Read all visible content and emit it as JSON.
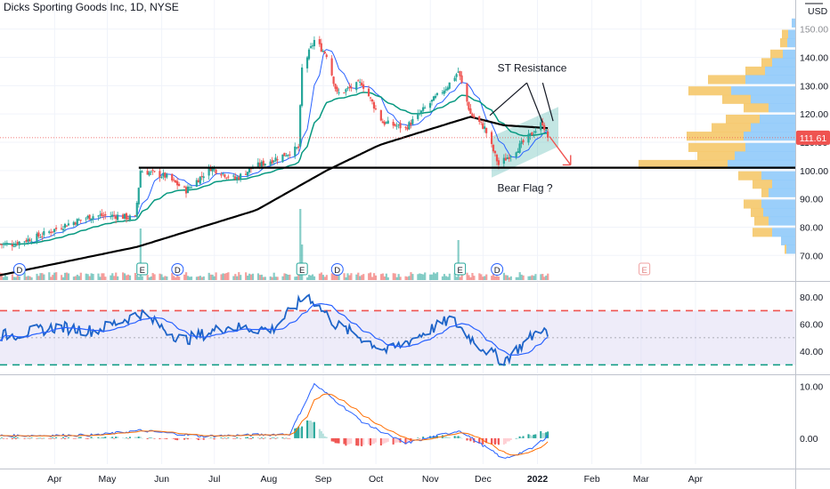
{
  "header": {
    "symbol_title": "Dicks Sporting Goods Inc, 1D, NYSE",
    "currency": "USD"
  },
  "colors": {
    "up": "#26a69a",
    "down": "#ef5350",
    "sma_fast": "#2962ff",
    "ema_mid": "#089981",
    "sma_slow": "#000000",
    "rsi_line": "#1e64c8",
    "rsi_band": "#d9d4f2",
    "macd_line": "#2962ff",
    "signal_line": "#ff6d00",
    "vp_up": "#90caf9",
    "vp_down": "#f5c86a",
    "price_tag": "#ef5350"
  },
  "chart_data": [
    {
      "type": "candlestick",
      "name": "price",
      "x_months": [
        "Apr",
        "May",
        "Jun",
        "Jul",
        "Aug",
        "Sep",
        "Oct",
        "Nov",
        "Dec",
        "2022",
        "Feb",
        "Mar",
        "Apr"
      ],
      "anchor_closes": [
        [
          "2021-03-15",
          74
        ],
        [
          "2021-03-31",
          77
        ],
        [
          "2021-04-15",
          81
        ],
        [
          "2021-04-30",
          84
        ],
        [
          "2021-05-14",
          84
        ],
        [
          "2021-05-24",
          83
        ],
        [
          "2021-05-27",
          100
        ],
        [
          "2021-06-10",
          98
        ],
        [
          "2021-06-22",
          93
        ],
        [
          "2021-07-06",
          101
        ],
        [
          "2021-07-20",
          97
        ],
        [
          "2021-07-30",
          101
        ],
        [
          "2021-08-15",
          105
        ],
        [
          "2021-08-25",
          108
        ],
        [
          "2021-08-27",
          136
        ],
        [
          "2021-09-03",
          146
        ],
        [
          "2021-09-10",
          141
        ],
        [
          "2021-09-16",
          127
        ],
        [
          "2021-09-30",
          131
        ],
        [
          "2021-10-12",
          117
        ],
        [
          "2021-10-25",
          115
        ],
        [
          "2021-11-05",
          122
        ],
        [
          "2021-11-18",
          130
        ],
        [
          "2021-11-24",
          135
        ],
        [
          "2021-12-01",
          120
        ],
        [
          "2021-12-09",
          115
        ],
        [
          "2021-12-17",
          102
        ],
        [
          "2021-12-28",
          108
        ],
        [
          "2022-01-05",
          113
        ],
        [
          "2022-01-11",
          117
        ],
        [
          "2022-01-14",
          111.61
        ]
      ],
      "yaxis_ticks": [
        70,
        80,
        90,
        100,
        110,
        120,
        130,
        140,
        150
      ],
      "ylim": [
        66,
        154
      ],
      "last_price": "111.61",
      "support_level": 101,
      "overlays": [
        "SMA fast",
        "EMA mid",
        "SMA slow"
      ],
      "earnings_markers": [
        "2021-05-26",
        "2021-08-25",
        "2021-11-23",
        "2022-03-08"
      ],
      "dividend_markers": [
        "2021-03-12",
        "2021-06-10",
        "2021-09-09",
        "2021-12-09"
      ],
      "annotations": {
        "resistance": "ST Resistance",
        "pattern": "Bear Flag ?"
      }
    },
    {
      "type": "line",
      "name": "RSI",
      "ylim": [
        25,
        88
      ],
      "yaxis_ticks": [
        40.0,
        60.0,
        80.0
      ],
      "upper_level": 70,
      "lower_level": 30,
      "mid_level": 50,
      "anchor_values": [
        [
          "2021-03-15",
          52
        ],
        [
          "2021-04-10",
          58
        ],
        [
          "2021-05-01",
          55
        ],
        [
          "2021-05-27",
          68
        ],
        [
          "2021-06-20",
          48
        ],
        [
          "2021-07-15",
          58
        ],
        [
          "2021-08-10",
          56
        ],
        [
          "2021-08-30",
          82
        ],
        [
          "2021-09-15",
          60
        ],
        [
          "2021-10-15",
          40
        ],
        [
          "2021-11-20",
          64
        ],
        [
          "2021-12-05",
          45
        ],
        [
          "2021-12-20",
          33
        ],
        [
          "2022-01-11",
          58
        ],
        [
          "2022-01-14",
          50
        ]
      ]
    },
    {
      "type": "bar",
      "name": "MACD",
      "ylim": [
        -5,
        11.5
      ],
      "yaxis_ticks": [
        "0.00",
        "10.00"
      ],
      "anchor_macd": [
        [
          "2021-03-15",
          0.5
        ],
        [
          "2021-05-01",
          0.6
        ],
        [
          "2021-05-27",
          1.5
        ],
        [
          "2021-07-01",
          0.4
        ],
        [
          "2021-08-20",
          0.8
        ],
        [
          "2021-09-03",
          10.5
        ],
        [
          "2021-10-01",
          3.0
        ],
        [
          "2021-10-25",
          -1.0
        ],
        [
          "2021-11-25",
          1.5
        ],
        [
          "2021-12-20",
          -4.0
        ],
        [
          "2022-01-05",
          -2.0
        ],
        [
          "2022-01-14",
          0.5
        ]
      ]
    }
  ]
}
